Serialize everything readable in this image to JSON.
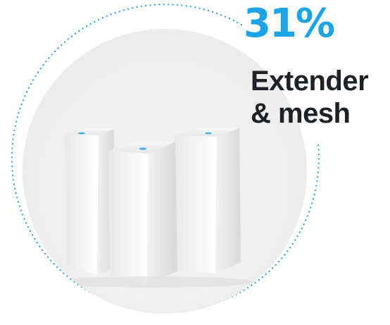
{
  "stat": {
    "percent": "31%",
    "label_line1": "Extender",
    "label_line2": "& mesh"
  },
  "colors": {
    "accent": "#1ba4e8",
    "text": "#1e2228",
    "ring_dots": "#1ba4e8"
  },
  "icons": {
    "illustration": "mesh-router-devices-icon",
    "ring": "dotted-ring"
  }
}
